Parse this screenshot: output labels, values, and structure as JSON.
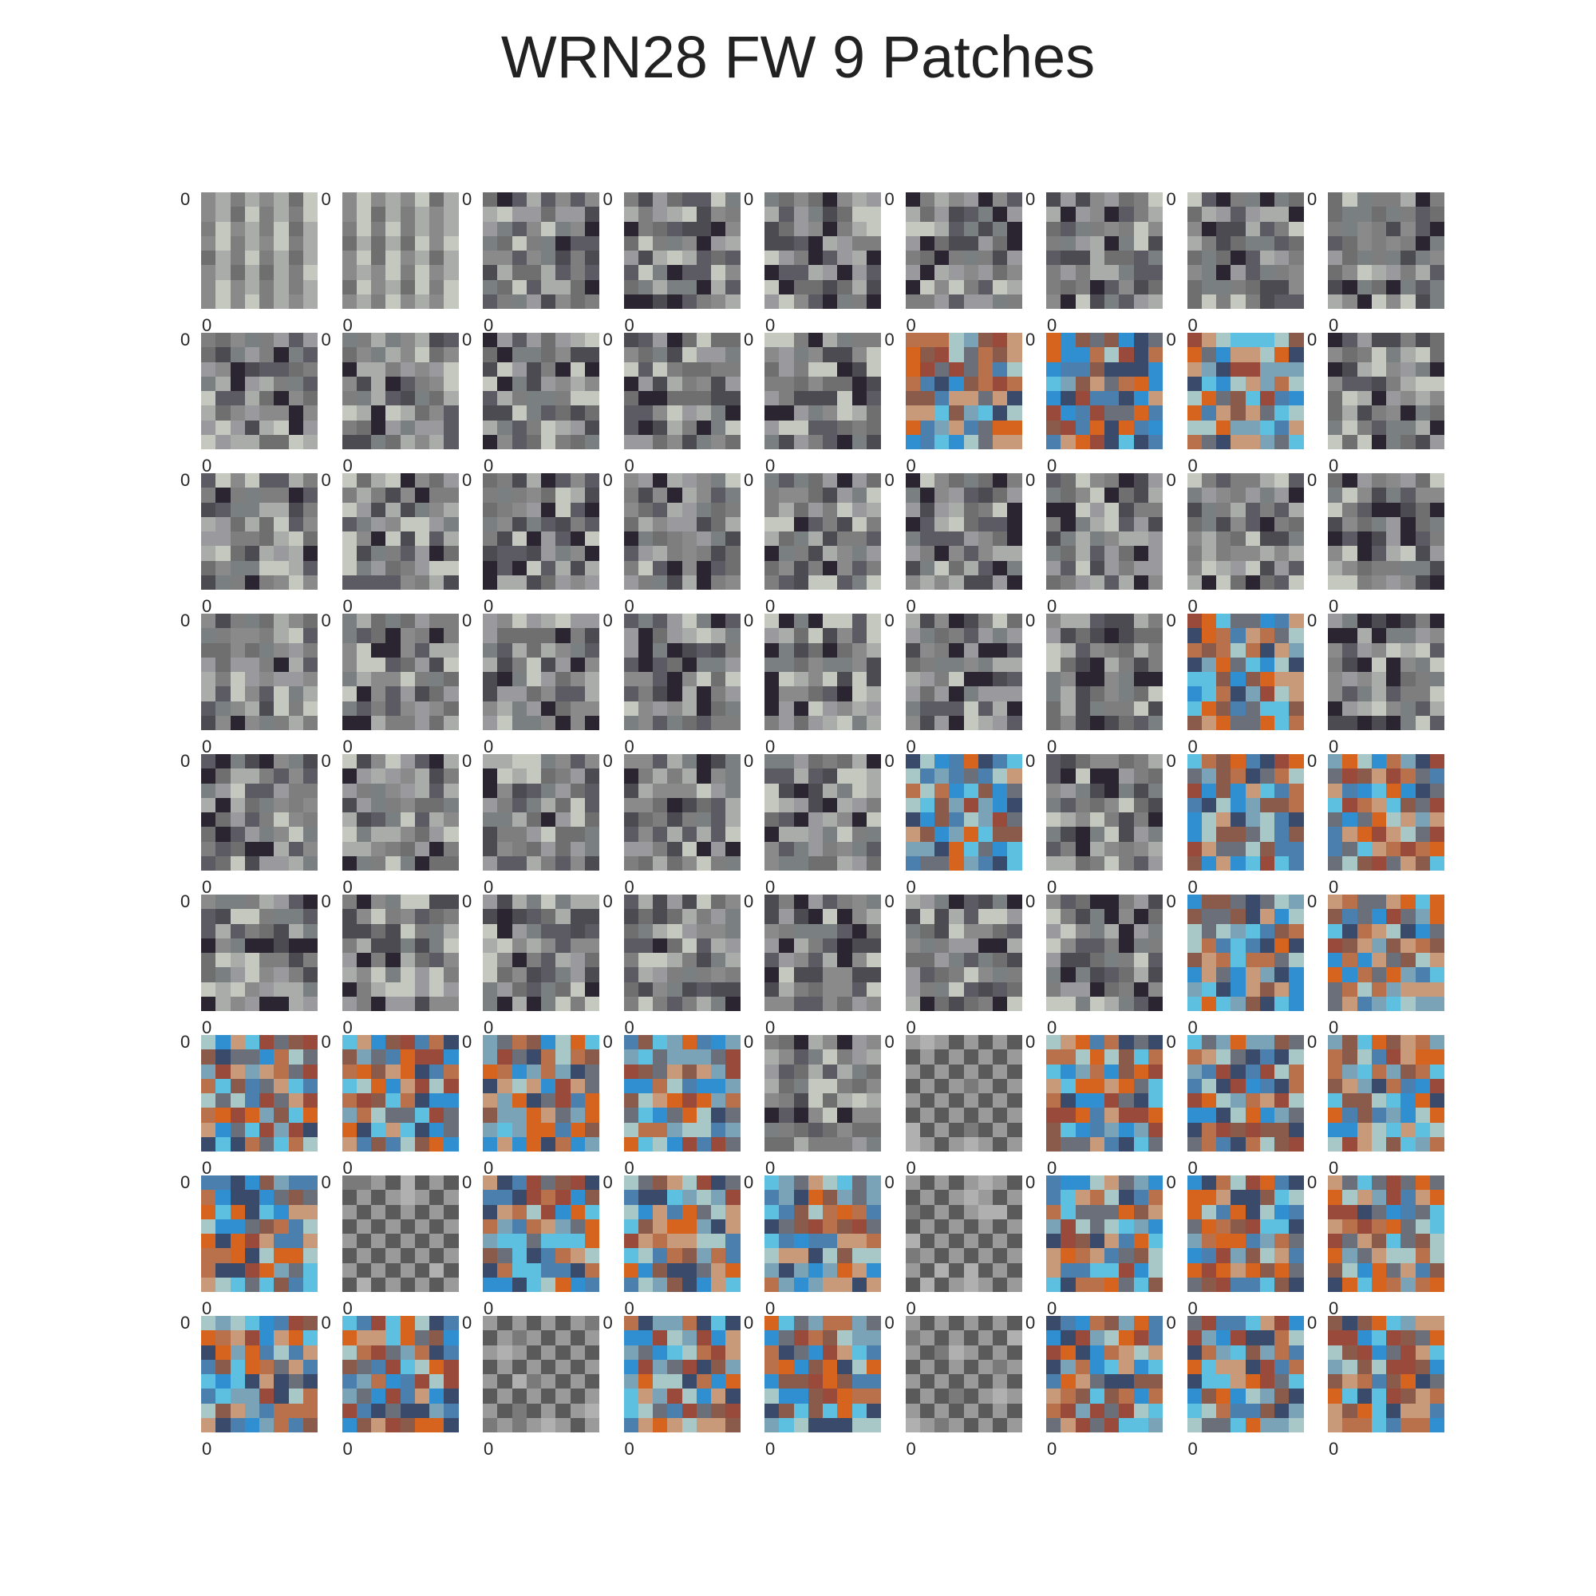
{
  "figure": {
    "title": "WRN28 FW 9 Patches",
    "rows": 9,
    "cols": 9,
    "tick_label": "0",
    "patch_size": 8,
    "background": "#ffffff"
  },
  "patch_styles": [
    "gray",
    "gray",
    "gray",
    "gray",
    "gray",
    "gray",
    "gray",
    "gray",
    "gray",
    "gray",
    "gray",
    "gray",
    "gray",
    "gray",
    "color",
    "color",
    "color",
    "gray",
    "gray",
    "gray",
    "gray",
    "gray",
    "gray",
    "gray",
    "gray",
    "gray",
    "gray",
    "gray",
    "gray",
    "gray",
    "gray",
    "gray",
    "gray",
    "gray",
    "color",
    "gray",
    "gray",
    "gray",
    "gray",
    "gray",
    "gray",
    "color",
    "gray",
    "color",
    "color",
    "gray",
    "gray",
    "gray",
    "gray",
    "gray",
    "gray",
    "gray",
    "color",
    "color",
    "color",
    "color",
    "color",
    "color",
    "gray",
    "checker",
    "color",
    "color",
    "color",
    "color",
    "checker",
    "color",
    "color",
    "color",
    "checker",
    "color",
    "color",
    "color",
    "color",
    "color",
    "checker",
    "color",
    "color",
    "checker",
    "color",
    "color",
    "color"
  ],
  "palettes": {
    "gray": [
      "#7e7e7e",
      "#8a8a8a",
      "#6f6f6f",
      "#a9aca8",
      "#c4c8be",
      "#4d4b52",
      "#5c5a62",
      "#2a2530",
      "#9a9a9e",
      "#7a7f82"
    ],
    "color": [
      "#2f8fd0",
      "#d7641e",
      "#4a7fae",
      "#b8714b",
      "#7aa3b8",
      "#8a5a4a",
      "#5ec0e0",
      "#6b6f7a",
      "#a8c8c8",
      "#3a4a6a",
      "#c89a7a",
      "#9a4a3a"
    ],
    "checker": [
      "#9a9a9a",
      "#5a5a5a",
      "#7a7a7a",
      "#b0b0b0"
    ]
  }
}
